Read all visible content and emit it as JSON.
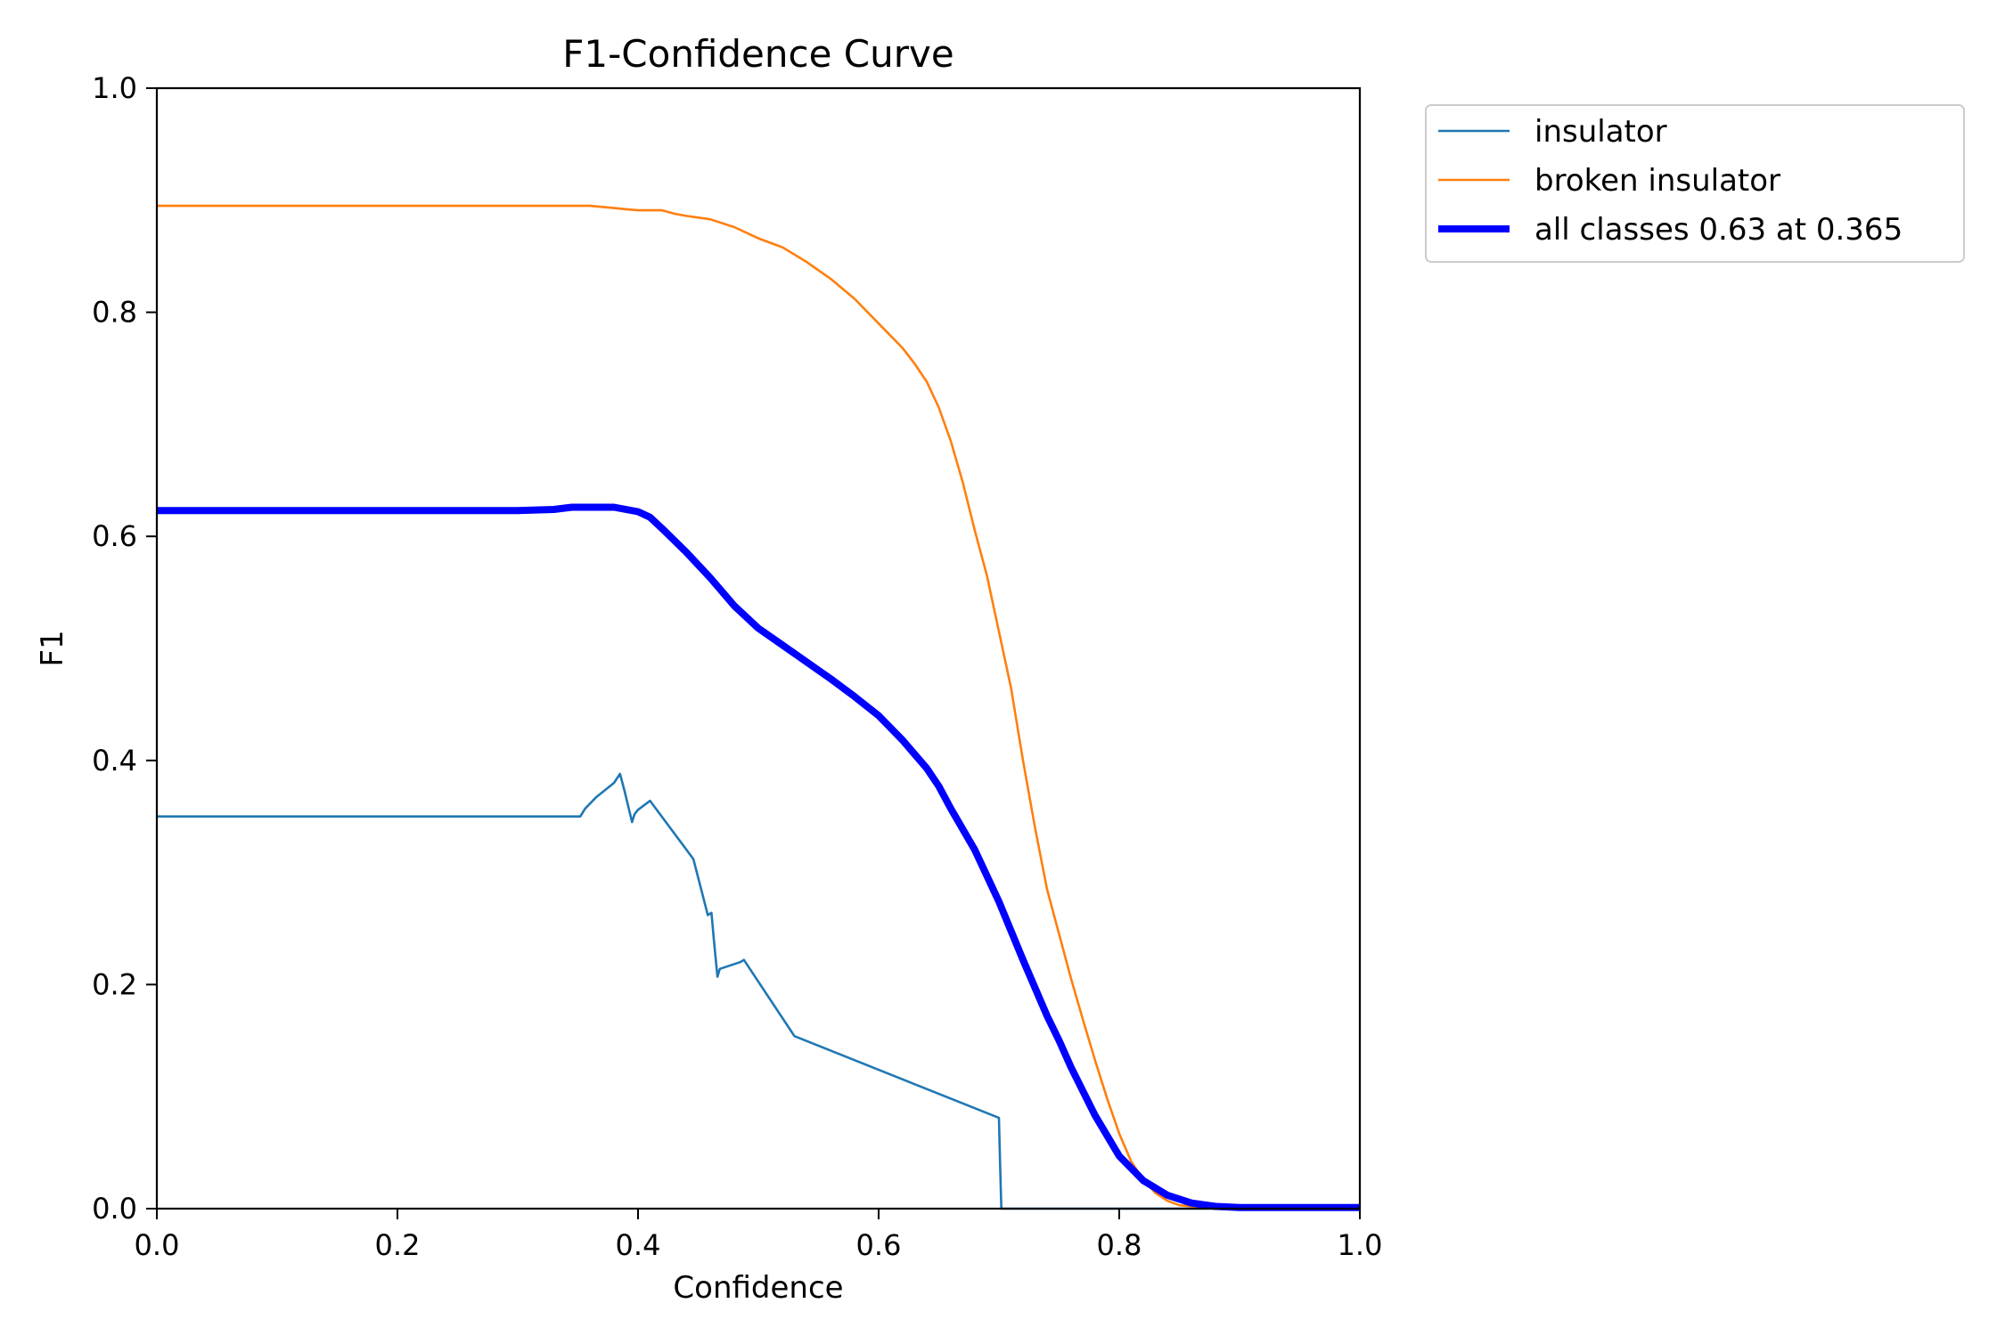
{
  "chart_data": {
    "type": "line",
    "title": "F1-Confidence Curve",
    "xlabel": "Confidence",
    "ylabel": "F1",
    "xlim": [
      0.0,
      1.0
    ],
    "ylim": [
      0.0,
      1.0
    ],
    "xticks": [
      "0.0",
      "0.2",
      "0.4",
      "0.6",
      "0.8",
      "1.0"
    ],
    "yticks": [
      "0.0",
      "0.2",
      "0.4",
      "0.6",
      "0.8",
      "1.0"
    ],
    "grid": false,
    "legend_position": "outside-top-right",
    "series": [
      {
        "name": "insulator",
        "color": "#1f77b4",
        "x": [
          0.0,
          0.352,
          0.356,
          0.365,
          0.38,
          0.385,
          0.389,
          0.395,
          0.397,
          0.4,
          0.41,
          0.446,
          0.458,
          0.461,
          0.463,
          0.466,
          0.468,
          0.485,
          0.488,
          0.53,
          0.7,
          0.701,
          0.702,
          1.0
        ],
        "y": [
          0.35,
          0.35,
          0.357,
          0.367,
          0.38,
          0.388,
          0.372,
          0.345,
          0.352,
          0.356,
          0.364,
          0.312,
          0.262,
          0.264,
          0.24,
          0.207,
          0.214,
          0.22,
          0.222,
          0.154,
          0.081,
          0.04,
          0.0,
          0.0
        ]
      },
      {
        "name": "broken insulator",
        "color": "#ff7f0e",
        "x": [
          0.0,
          0.2,
          0.36,
          0.37,
          0.38,
          0.39,
          0.4,
          0.41,
          0.42,
          0.43,
          0.44,
          0.46,
          0.48,
          0.5,
          0.52,
          0.54,
          0.56,
          0.58,
          0.6,
          0.62,
          0.63,
          0.64,
          0.65,
          0.66,
          0.67,
          0.68,
          0.69,
          0.7,
          0.71,
          0.72,
          0.73,
          0.74,
          0.75,
          0.76,
          0.77,
          0.78,
          0.79,
          0.8,
          0.81,
          0.82,
          0.83,
          0.84,
          0.85,
          0.87,
          0.9,
          1.0
        ],
        "y": [
          0.895,
          0.895,
          0.895,
          0.894,
          0.893,
          0.892,
          0.891,
          0.891,
          0.891,
          0.888,
          0.886,
          0.883,
          0.876,
          0.866,
          0.858,
          0.845,
          0.83,
          0.812,
          0.79,
          0.768,
          0.754,
          0.738,
          0.715,
          0.685,
          0.648,
          0.605,
          0.565,
          0.515,
          0.465,
          0.4,
          0.34,
          0.285,
          0.245,
          0.205,
          0.168,
          0.132,
          0.098,
          0.067,
          0.042,
          0.026,
          0.014,
          0.007,
          0.003,
          0.001,
          0.0,
          0.0
        ]
      },
      {
        "name": "all classes 0.63 at 0.365",
        "color": "#0000ff",
        "bold": true,
        "x": [
          0.0,
          0.3,
          0.33,
          0.345,
          0.36,
          0.38,
          0.4,
          0.41,
          0.42,
          0.44,
          0.46,
          0.48,
          0.5,
          0.52,
          0.54,
          0.56,
          0.58,
          0.6,
          0.62,
          0.64,
          0.65,
          0.66,
          0.68,
          0.7,
          0.72,
          0.74,
          0.75,
          0.76,
          0.78,
          0.8,
          0.82,
          0.84,
          0.86,
          0.88,
          0.9,
          1.0
        ],
        "y": [
          0.623,
          0.623,
          0.624,
          0.626,
          0.626,
          0.626,
          0.622,
          0.617,
          0.607,
          0.586,
          0.563,
          0.538,
          0.518,
          0.503,
          0.488,
          0.473,
          0.457,
          0.44,
          0.418,
          0.393,
          0.377,
          0.357,
          0.32,
          0.274,
          0.222,
          0.172,
          0.15,
          0.126,
          0.083,
          0.047,
          0.025,
          0.012,
          0.005,
          0.002,
          0.001,
          0.001
        ]
      }
    ]
  }
}
